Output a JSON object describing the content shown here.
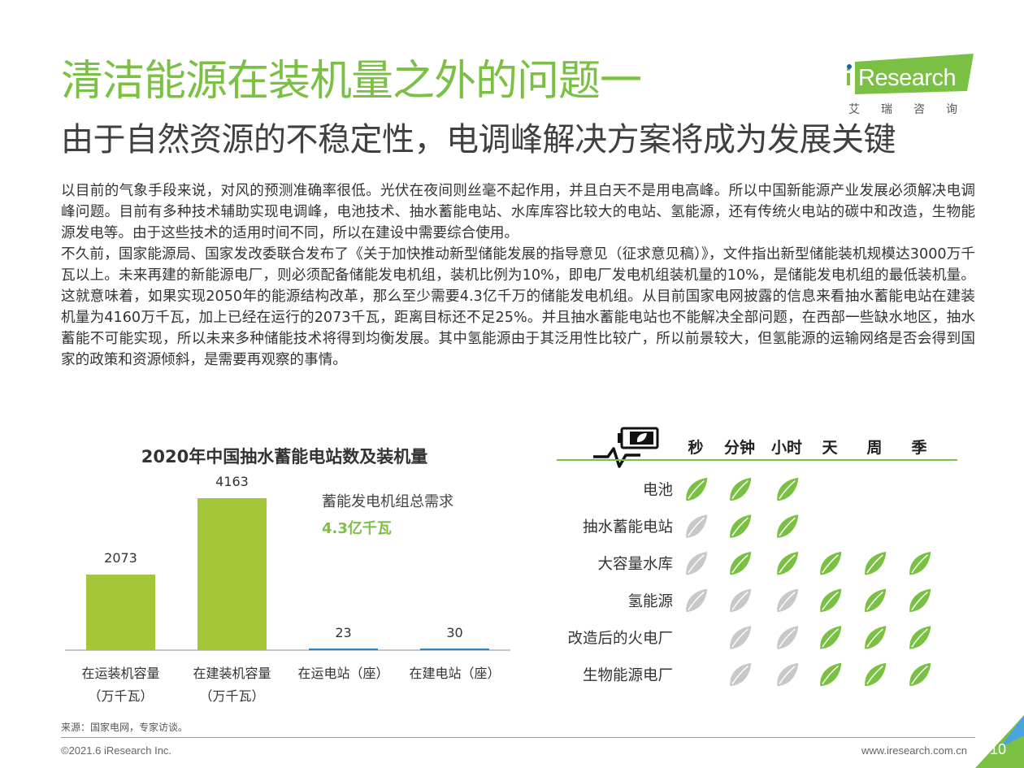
{
  "header": {
    "title": "清洁能源在装机量之外的问题一",
    "subtitle": "由于自然资源的不稳定性，电调峰解决方案将成为发展关键"
  },
  "logo": {
    "brand_i": "i",
    "brand_text": "Research",
    "brand_cn": "艾瑞咨询"
  },
  "body": {
    "p1": "以目前的气象手段来说，对风的预测准确率很低。光伏在夜间则丝毫不起作用，并且白天不是用电高峰。所以中国新能源产业发展必须解决电调峰问题。目前有多种技术辅助实现电调峰，电池技术、抽水蓄能电站、水库库容比较大的电站、氢能源，还有传统火电站的碳中和改造，生物能源发电等。由于这些技术的适用时间不同，所以在建设中需要综合使用。",
    "p2": "不久前，国家能源局、国家发改委联合发布了《关于加快推动新型储能发展的指导意见（征求意见稿）》，文件指出新型储能装机规模达3000万千瓦以上。未来再建的新能源电厂，则必须配备储能发电机组，装机比例为10%，即电厂发电机组装机量的10%，是储能发电机组的最低装机量。这就意味着，如果实现2050年的能源结构改革，那么至少需要4.3亿千万的储能发电机组。从目前国家电网披露的信息来看抽水蓄能电站在建装机量为4160万千瓦，加上已经在运行的2073千瓦，距离目标还不足25%。并且抽水蓄能电站也不能解决全部问题，在西部一些缺水地区，抽水蓄能不可能实现，所以未来多种储能技术将得到均衡发展。其中氢能源由于其泛用性比较广，所以前景较大，但氢能源的运输网络是否会得到国家的政策和资源倾斜，是需要再观察的事情。"
  },
  "annotation": {
    "label": "蓄能发电机组总需求",
    "value": "4.3亿千瓦"
  },
  "chart_data": [
    {
      "type": "bar",
      "title": "2020年中国抽水蓄能电站数及装机量",
      "categories": [
        [
          "在运装机容量",
          "（万千瓦）"
        ],
        [
          "在建装机容量",
          "（万千瓦）"
        ],
        [
          "在运电站（座）"
        ],
        [
          "在建电站（座）"
        ]
      ],
      "values": [
        2073,
        4163,
        23,
        30
      ],
      "value_labels": [
        "2073",
        "4163",
        "23",
        "30"
      ],
      "ylim": [
        0,
        4163
      ],
      "grid": false,
      "colors": {
        "large": "#a4c639",
        "small": "#2e86c1"
      }
    },
    {
      "type": "table",
      "columns": [
        "秒",
        "分钟",
        "小时",
        "天",
        "周",
        "季"
      ],
      "rows": [
        {
          "label": "电池",
          "cells": [
            "green",
            "green",
            "green",
            "",
            "",
            ""
          ]
        },
        {
          "label": "抽水蓄能电站",
          "cells": [
            "gray",
            "green",
            "green",
            "",
            "",
            ""
          ]
        },
        {
          "label": "大容量水库",
          "cells": [
            "gray",
            "green",
            "green",
            "green",
            "green",
            "green"
          ]
        },
        {
          "label": "氢能源",
          "cells": [
            "gray",
            "gray",
            "gray",
            "green",
            "green",
            "green"
          ]
        },
        {
          "label": "改造后的火电厂",
          "cells": [
            "",
            "gray",
            "gray",
            "green",
            "green",
            "green"
          ]
        },
        {
          "label": "生物能源电厂",
          "cells": [
            "",
            "gray",
            "gray",
            "green",
            "green",
            "green"
          ]
        }
      ],
      "icon": "battery-pulse-icon",
      "cell_icon": "leaf-icon",
      "colors": {
        "green": "#7ac143",
        "gray": "#c8c8c8",
        "rule": "#7ac143"
      }
    }
  ],
  "footer": {
    "source": "来源：国家电网，专家访谈。",
    "copyright": "©2021.6 iResearch Inc.",
    "website": "www.iresearch.com.cn",
    "page": "10"
  },
  "colors": {
    "brand_green": "#7ac143",
    "text_dark": "#404040"
  }
}
